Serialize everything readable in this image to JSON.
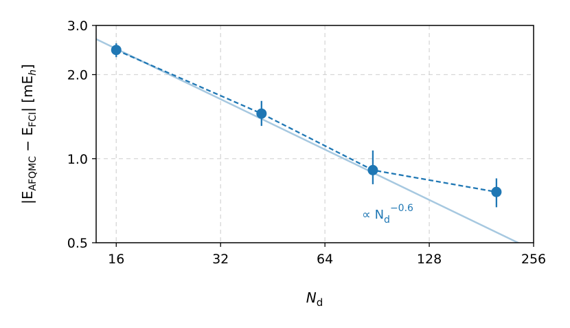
{
  "chart_data": {
    "type": "scatter",
    "x_scale": "log2",
    "y_scale": "log",
    "xlim": [
      14,
      256
    ],
    "ylim": [
      0.5,
      3.0
    ],
    "x_ticks": [
      16,
      32,
      64,
      128,
      256
    ],
    "x_tick_labels": [
      "16",
      "32",
      "64",
      "128",
      "256"
    ],
    "y_ticks": [
      0.5,
      1.0,
      2.0,
      3.0
    ],
    "y_tick_labels": [
      "0.5",
      "1.0",
      "2.0",
      "3.0"
    ],
    "grid": true,
    "xlabel": {
      "base": "N",
      "sub": "d"
    },
    "ylabel": {
      "p1": "|E",
      "sub1": "AFQMC",
      "p2": " − E",
      "sub2": "FCI",
      "p3": "| [mE",
      "sub3": "h",
      "p4": "]"
    },
    "series": [
      {
        "style": "dashed-with-markers",
        "color": "#1f77b4",
        "x": [
          16,
          42,
          88,
          200
        ],
        "y": [
          2.45,
          1.45,
          0.91,
          0.76
        ],
        "err_low": [
          0.14,
          0.14,
          0.1,
          0.09
        ],
        "err_high": [
          0.14,
          0.16,
          0.16,
          0.09
        ]
      },
      {
        "style": "fit-line",
        "color": "#a6c8e0",
        "slope": -0.6,
        "x": [
          14,
          256
        ],
        "y": [
          2.68,
          0.47
        ]
      }
    ],
    "annotation": {
      "prefix": "∝ N",
      "sub": "d",
      "sup": "−0.6",
      "x": 88,
      "y": 0.62,
      "color": "#1f77b4"
    }
  }
}
